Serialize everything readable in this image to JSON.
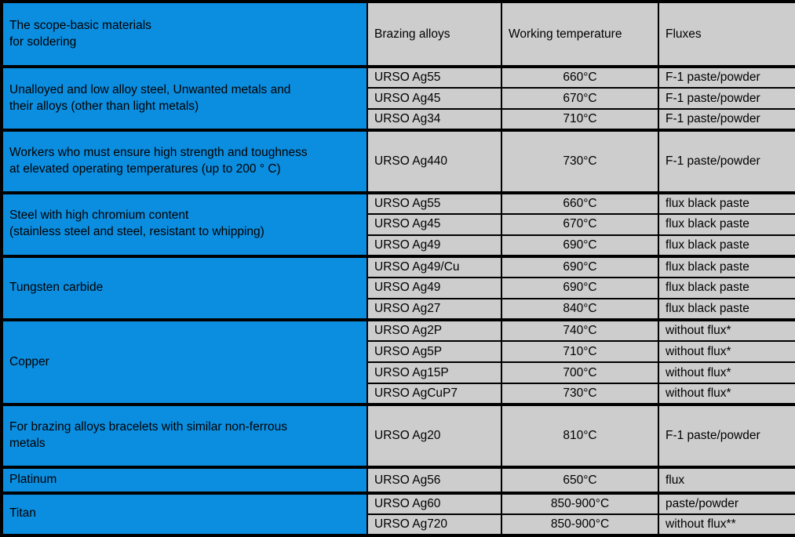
{
  "colors": {
    "material_column_blue": "#0b8ee0",
    "data_cell_gray": "#cdcdcd",
    "border_black": "#000000",
    "material_text_white": "#ffffff"
  },
  "header": {
    "scope": "The scope-basic materials\nfor soldering",
    "columns": [
      "Brazing alloys",
      "Working temperature",
      "Fluxes"
    ]
  },
  "groups": [
    {
      "material": "Unalloyed and low alloy steel, Unwanted metals and\ntheir alloys (other than light metals)",
      "rows": [
        {
          "alloy": "URSO Ag55",
          "temp": "660°C",
          "flux": "F-1 paste/powder"
        },
        {
          "alloy": "URSO Ag45",
          "temp": "670°C",
          "flux": "F-1 paste/powder"
        },
        {
          "alloy": "URSO Ag34",
          "temp": "710°C",
          "flux": "F-1 paste/powder"
        }
      ]
    },
    {
      "material": "Workers who must ensure high strength and toughness\nat elevated operating temperatures (up to 200 ° C)",
      "rows": [
        {
          "alloy": "URSO Ag440",
          "temp": "730°C",
          "flux": "F-1 paste/powder"
        }
      ]
    },
    {
      "material": "Steel with high chromium content\n(stainless steel and steel, resistant to whipping)",
      "rows": [
        {
          "alloy": "URSO Ag55",
          "temp": "660°C",
          "flux": "flux black paste"
        },
        {
          "alloy": "URSO Ag45",
          "temp": "670°C",
          "flux": "flux black paste"
        },
        {
          "alloy": "URSO Ag49",
          "temp": "690°C",
          "flux": "flux black paste"
        }
      ]
    },
    {
      "material": "Tungsten carbide",
      "rows": [
        {
          "alloy": "URSO Ag49/Cu",
          "temp": "690°C",
          "flux": "flux black paste"
        },
        {
          "alloy": "URSO Ag49",
          "temp": "690°C",
          "flux": "flux black paste"
        },
        {
          "alloy": "URSO Ag27",
          "temp": "840°C",
          "flux": "flux black paste"
        }
      ]
    },
    {
      "material": "Copper",
      "rows": [
        {
          "alloy": "URSO Ag2P",
          "temp": "740°C",
          "flux": "without flux*"
        },
        {
          "alloy": "URSO Ag5P",
          "temp": "710°C",
          "flux": "without flux*"
        },
        {
          "alloy": "URSO Ag15P",
          "temp": "700°C",
          "flux": "without flux*"
        },
        {
          "alloy": "URSO AgCuP7",
          "temp": "730°C",
          "flux": "without flux*"
        }
      ]
    },
    {
      "material": "For brazing alloys bracelets with similar non-ferrous\nmetals",
      "rows": [
        {
          "alloy": "URSO Ag20",
          "temp": "810°C",
          "flux": "F-1 paste/powder"
        }
      ]
    },
    {
      "material": "Platinum",
      "rows": [
        {
          "alloy": "URSO Ag56",
          "temp": "650°C",
          "flux": "flux"
        }
      ]
    },
    {
      "material": "Titan",
      "rows": [
        {
          "alloy": "URSO Ag60",
          "temp": "850-900°C",
          "flux": "paste/powder"
        },
        {
          "alloy": "URSO Ag720",
          "temp": "850-900°C",
          "flux": "without flux**"
        }
      ]
    }
  ]
}
